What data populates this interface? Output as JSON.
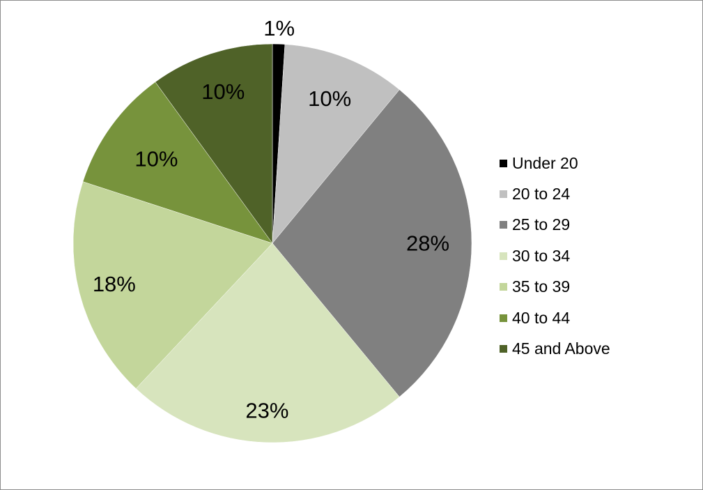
{
  "chart_data": {
    "type": "pie",
    "title": "",
    "categories": [
      "Under 20",
      "20 to 24",
      "25 to 29",
      "30 to 34",
      "35 to 39",
      "40 to 44",
      "45 and Above"
    ],
    "values": [
      1,
      10,
      28,
      23,
      18,
      10,
      10
    ],
    "value_labels": [
      "1%",
      "10%",
      "28%",
      "23%",
      "18%",
      "10%",
      "10%"
    ],
    "unit": "%",
    "colors": [
      "#000000",
      "#c0c0c0",
      "#808080",
      "#d7e4bd",
      "#c3d69b",
      "#77933c",
      "#4f6228"
    ],
    "legend_position": "right",
    "start_angle": "12 o'clock",
    "direction": "clockwise"
  }
}
